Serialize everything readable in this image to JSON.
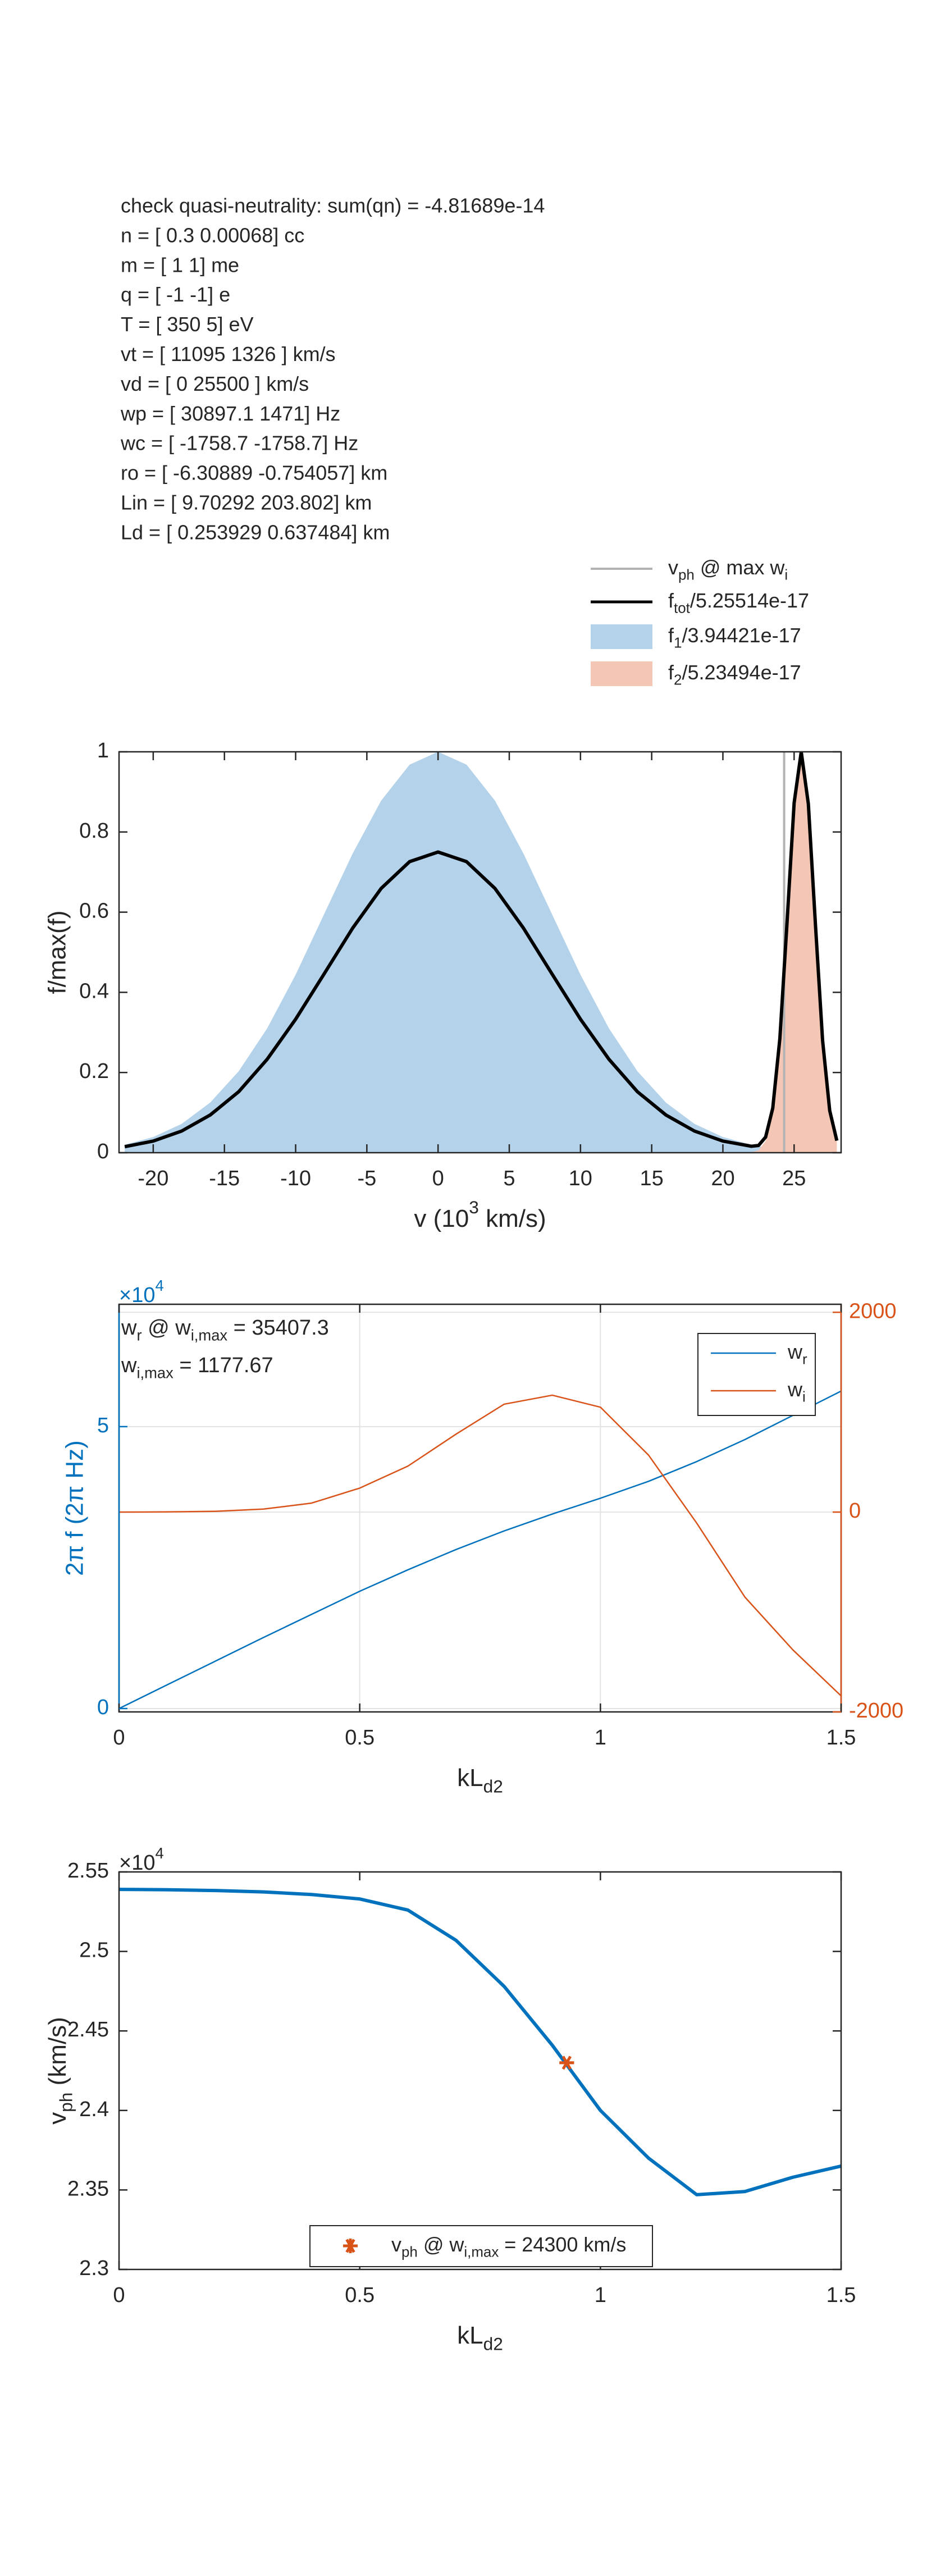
{
  "text_block": [
    "check quasi-neutrality: sum(qn) = -4.81689e-14",
    "n = [ 0.3 0.00068] cc",
    "m = [ 1 1] me",
    "q = [ -1 -1] e",
    "T = [ 350 5] eV",
    "vt = [ 11095 1326 ]  km/s",
    "vd = [ 0 25500 ]  km/s",
    "wp = [ 30897.1 1471] Hz",
    "wc = [ -1758.7 -1758.7] Hz",
    "ro = [ -6.30889 -0.754057] km",
    "Lin = [ 9.70292 203.802] km",
    "Ld = [ 0.253929 0.637484] km"
  ],
  "chart_data": [
    {
      "type": "area",
      "x": [
        -22,
        -20,
        -18,
        -16,
        -14,
        -12,
        -10,
        -8,
        -6,
        -4,
        -2,
        0,
        2,
        4,
        6,
        8,
        10,
        12,
        14,
        16,
        18,
        20,
        22,
        22.5,
        23,
        23.5,
        24,
        24.5,
        25,
        25.5,
        26,
        26.5,
        27,
        27.5,
        28
      ],
      "series": [
        {
          "name": [
            {
              "text": "f"
            },
            {
              "text": "tot",
              "script": "sub"
            },
            {
              "text": "/5.25514e-17"
            }
          ],
          "color": "#000000",
          "style": "line",
          "values": [
            0.015,
            0.029,
            0.054,
            0.094,
            0.152,
            0.233,
            0.333,
            0.446,
            0.56,
            0.659,
            0.726,
            0.75,
            0.726,
            0.659,
            0.56,
            0.446,
            0.333,
            0.233,
            0.152,
            0.094,
            0.054,
            0.029,
            0.016,
            0.018,
            0.039,
            0.111,
            0.285,
            0.572,
            0.872,
            1,
            0.87,
            0.568,
            0.28,
            0.105,
            0.03
          ]
        },
        {
          "name": [
            {
              "text": "f"
            },
            {
              "text": "1",
              "script": "sub"
            },
            {
              "text": "/3.94421e-17"
            }
          ],
          "color": "#b4d3ea",
          "style": "area",
          "values": [
            0.02,
            0.039,
            0.072,
            0.125,
            0.203,
            0.31,
            0.444,
            0.595,
            0.746,
            0.878,
            0.968,
            1,
            0.968,
            0.878,
            0.746,
            0.595,
            0.444,
            0.31,
            0.203,
            0.125,
            0.072,
            0.039,
            0.02,
            0.016,
            0.014,
            0.011,
            0.009,
            0.008,
            0.006,
            0.005,
            0.004,
            0.003,
            0.003,
            0.002,
            0.002
          ]
        },
        {
          "name": [
            {
              "text": "f"
            },
            {
              "text": "2",
              "script": "sub"
            },
            {
              "text": "/5.23494e-17"
            }
          ],
          "color": "#f3c6b5",
          "style": "area",
          "values": [
            0,
            0,
            0,
            0,
            0,
            0,
            0,
            0,
            0,
            0,
            0,
            0,
            0,
            0,
            0,
            0,
            0,
            0,
            0,
            0,
            0,
            0,
            0.001,
            0.006,
            0.029,
            0.103,
            0.278,
            0.566,
            0.867,
            1,
            0.867,
            0.566,
            0.278,
            0.103,
            0.029
          ]
        }
      ],
      "vlines": [
        {
          "name": [
            {
              "text": "v"
            },
            {
              "text": "ph",
              "script": "sub"
            },
            {
              "text": " @ max w"
            },
            {
              "text": "i",
              "script": "sub"
            }
          ],
          "color": "#b3b3b3",
          "x": 24.3
        }
      ],
      "xlim": [
        -22.4,
        28.3
      ],
      "xticks": [
        -20,
        -15,
        -10,
        -5,
        0,
        5,
        10,
        15,
        20,
        25
      ],
      "ylim": [
        0,
        1
      ],
      "yticks": [
        0,
        0.2,
        0.4,
        0.6,
        0.8,
        1
      ],
      "xlabel": [
        {
          "text": "v (10"
        },
        {
          "text": "3",
          "script": "sup"
        },
        {
          "text": " km/s)"
        }
      ],
      "ylabel": "f/max(f)",
      "grid": false,
      "legend": "outside-top-right"
    },
    {
      "type": "line",
      "x": [
        0,
        0.1,
        0.2,
        0.3,
        0.4,
        0.5,
        0.6,
        0.7,
        0.8,
        0.9,
        1,
        1.1,
        1.2,
        1.3,
        1.4,
        1.5
      ],
      "series": [
        {
          "name": [
            {
              "text": "w"
            },
            {
              "text": "r",
              "script": "sub"
            }
          ],
          "color": "#0072bd",
          "values": [
            0,
            4200,
            8400,
            12600,
            16700,
            20800,
            24600,
            28200,
            31500,
            34500,
            37300,
            40300,
            43800,
            47700,
            52000,
            56300
          ]
        },
        {
          "name": [
            {
              "text": "w"
            },
            {
              "text": "i",
              "script": "sub"
            }
          ],
          "color": "#d95319",
          "axis": "y2",
          "values": [
            0,
            2,
            8,
            30,
            90,
            240,
            460,
            780,
            1080,
            1170,
            1050,
            570,
            -110,
            -850,
            -1380,
            -1840
          ]
        }
      ],
      "xlim": [
        0,
        1.5
      ],
      "xticks": [
        0,
        0.5,
        1,
        1.5
      ],
      "ylim": [
        -600,
        71700
      ],
      "yticks": [
        0,
        {
          "value": 50000,
          "label": "5"
        }
      ],
      "y_exponent": [
        {
          "text": "×10"
        },
        {
          "text": "4",
          "script": "sup"
        }
      ],
      "y2lim": [
        -2000,
        2080
      ],
      "y2ticks": [
        -2000,
        0,
        2000
      ],
      "ycolor": "#0072bd",
      "y2color": "#d95319",
      "xlabel": [
        {
          "text": "kL"
        },
        {
          "text": "d2",
          "script": "sub"
        }
      ],
      "ylabel": "2π f (2π Hz)",
      "grid": true,
      "legend": "top-right",
      "annotations": [
        [
          {
            "text": "w"
          },
          {
            "text": "r",
            "script": "sub"
          },
          {
            "text": " @ w"
          },
          {
            "text": "i,max",
            "script": "sub"
          },
          {
            "text": " = 35407.3"
          }
        ],
        [
          {
            "text": "w"
          },
          {
            "text": "i,max",
            "script": "sub"
          },
          {
            "text": " = 1177.67"
          }
        ]
      ]
    },
    {
      "type": "line",
      "x": [
        0,
        0.1,
        0.2,
        0.3,
        0.4,
        0.5,
        0.6,
        0.7,
        0.8,
        0.9,
        1,
        1.1,
        1.2,
        1.3,
        1.4,
        1.5
      ],
      "series": [
        {
          "color": "#0072bd",
          "values": [
            25390,
            25388,
            25383,
            25374,
            25358,
            25330,
            25260,
            25070,
            24780,
            24410,
            24000,
            23700,
            23470,
            23490,
            23580,
            23650
          ]
        }
      ],
      "points": [
        {
          "name": [
            {
              "text": "v"
            },
            {
              "text": "ph",
              "script": "sub"
            },
            {
              "text": " @ w"
            },
            {
              "text": "i,max",
              "script": "sub"
            },
            {
              "text": " = 24300 km/s"
            }
          ],
          "color": "#d95319",
          "x": 0.93,
          "y": 24300
        }
      ],
      "xlim": [
        0,
        1.5
      ],
      "xticks": [
        0,
        0.5,
        1,
        1.5
      ],
      "ylim": [
        23000,
        25500
      ],
      "yticks": [
        {
          "value": 23000,
          "label": "2.3"
        },
        {
          "value": 23500,
          "label": "2.35"
        },
        {
          "value": 24000,
          "label": "2.4"
        },
        {
          "value": 24500,
          "label": "2.45"
        },
        {
          "value": 25000,
          "label": "2.5"
        },
        {
          "value": 25500,
          "label": "2.55"
        }
      ],
      "y_exponent": [
        {
          "text": "×10"
        },
        {
          "text": "4",
          "script": "sup"
        }
      ],
      "xlabel": [
        {
          "text": "kL"
        },
        {
          "text": "d2",
          "script": "sub"
        }
      ],
      "ylabel": [
        {
          "text": "v"
        },
        {
          "text": "ph",
          "script": "sub"
        },
        {
          "text": " (km/s)"
        }
      ],
      "grid": false,
      "legend": "bottom"
    }
  ]
}
